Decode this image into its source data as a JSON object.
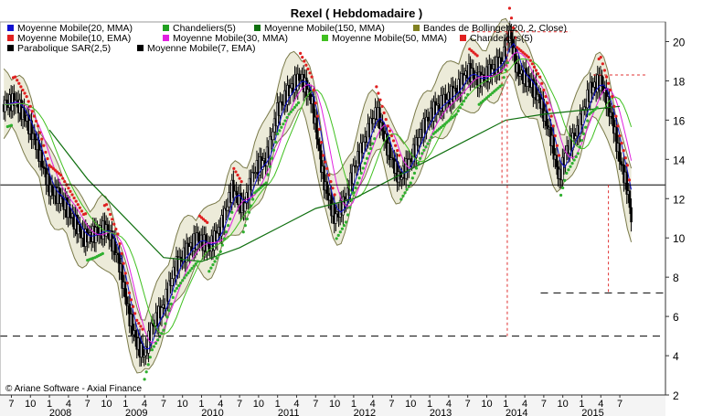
{
  "chart_data": {
    "type": "line",
    "title": "Rexel  ( Hebdomadaire )",
    "copyright": "© Ariane Software - Axial Finance",
    "y_ticks": [
      "2",
      "4",
      "6",
      "8",
      "10",
      "12",
      "14",
      "16",
      "18",
      "20"
    ],
    "ylim": [
      2,
      21
    ],
    "x_month_labels": [
      {
        "t": 2007.5,
        "label": "7"
      },
      {
        "t": 2007.75,
        "label": "10"
      },
      {
        "t": 2008.0,
        "label": "1"
      },
      {
        "t": 2008.25,
        "label": "4"
      },
      {
        "t": 2008.5,
        "label": "7"
      },
      {
        "t": 2008.75,
        "label": "10"
      },
      {
        "t": 2009.0,
        "label": "1"
      },
      {
        "t": 2009.25,
        "label": "4"
      },
      {
        "t": 2009.5,
        "label": "7"
      },
      {
        "t": 2009.75,
        "label": "10"
      },
      {
        "t": 2010.0,
        "label": "1"
      },
      {
        "t": 2010.25,
        "label": "4"
      },
      {
        "t": 2010.5,
        "label": "7"
      },
      {
        "t": 2010.75,
        "label": "10"
      },
      {
        "t": 2011.0,
        "label": "1"
      },
      {
        "t": 2011.25,
        "label": "4"
      },
      {
        "t": 2011.5,
        "label": "7"
      },
      {
        "t": 2011.75,
        "label": "10"
      },
      {
        "t": 2012.0,
        "label": "1"
      },
      {
        "t": 2012.25,
        "label": "4"
      },
      {
        "t": 2012.5,
        "label": "7"
      },
      {
        "t": 2012.75,
        "label": "10"
      },
      {
        "t": 2013.0,
        "label": "1"
      },
      {
        "t": 2013.25,
        "label": "4"
      },
      {
        "t": 2013.5,
        "label": "7"
      },
      {
        "t": 2013.75,
        "label": "10"
      },
      {
        "t": 2014.0,
        "label": "1"
      },
      {
        "t": 2014.25,
        "label": "4"
      },
      {
        "t": 2014.5,
        "label": "7"
      },
      {
        "t": 2014.75,
        "label": "10"
      },
      {
        "t": 2015.0,
        "label": "1"
      },
      {
        "t": 2015.25,
        "label": "4"
      },
      {
        "t": 2015.5,
        "label": "7"
      }
    ],
    "x_year_labels": [
      {
        "t": 2008.0,
        "label": "2008"
      },
      {
        "t": 2009.0,
        "label": "2009"
      },
      {
        "t": 2010.0,
        "label": "2010"
      },
      {
        "t": 2011.0,
        "label": "2011"
      },
      {
        "t": 2012.0,
        "label": "2012"
      },
      {
        "t": 2013.0,
        "label": "2013"
      },
      {
        "t": 2014.0,
        "label": "2014"
      },
      {
        "t": 2015.0,
        "label": "2015"
      }
    ],
    "xlim": [
      2007.35,
      2016.1
    ],
    "legend": [
      {
        "label": "Moyenne Mobile(20, MMA)",
        "color": "#1010d0"
      },
      {
        "label": "Chandeliers(5)",
        "color": "#20a020"
      },
      {
        "label": "Moyenne Mobile(150, MMA)",
        "color": "#107010"
      },
      {
        "label": "Bandes de Bollinger(20, 2, Close)",
        "color": "#808020"
      },
      {
        "label": "Moyenne Mobile(10, EMA)",
        "color": "#e02020"
      },
      {
        "label": "Moyenne Mobile(30, MMA)",
        "color": "#e020e0"
      },
      {
        "label": "Moyenne Mobile(50, MMA)",
        "color": "#40c020"
      },
      {
        "label": "Chandeliers(5)",
        "color": "#e02020"
      },
      {
        "label": "Parabolique SAR(2,5)",
        "color": "#000000"
      },
      {
        "label": "Moyenne Mobile(7, EMA)",
        "color": "#000000"
      }
    ],
    "series": [
      {
        "name": "Rexel",
        "points": [
          [
            2007.4,
            16.8
          ],
          [
            2007.55,
            17.0
          ],
          [
            2007.7,
            16.0
          ],
          [
            2007.85,
            14.5
          ],
          [
            2008.0,
            12.5
          ],
          [
            2008.15,
            12.0
          ],
          [
            2008.3,
            11.0
          ],
          [
            2008.45,
            10.0
          ],
          [
            2008.6,
            10.2
          ],
          [
            2008.75,
            10.5
          ],
          [
            2008.9,
            9.0
          ],
          [
            2009.05,
            6.0
          ],
          [
            2009.15,
            4.6
          ],
          [
            2009.25,
            4.0
          ],
          [
            2009.35,
            5.5
          ],
          [
            2009.5,
            6.5
          ],
          [
            2009.65,
            8.5
          ],
          [
            2009.8,
            9.3
          ],
          [
            2009.95,
            10.0
          ],
          [
            2010.1,
            9.5
          ],
          [
            2010.25,
            10.5
          ],
          [
            2010.4,
            12.5
          ],
          [
            2010.55,
            11.5
          ],
          [
            2010.7,
            13.5
          ],
          [
            2010.85,
            14.0
          ],
          [
            2011.0,
            16.5
          ],
          [
            2011.15,
            17.5
          ],
          [
            2011.3,
            18.2
          ],
          [
            2011.45,
            17.0
          ],
          [
            2011.6,
            13.0
          ],
          [
            2011.75,
            11.0
          ],
          [
            2011.9,
            12.0
          ],
          [
            2012.0,
            13.5
          ],
          [
            2012.15,
            15.0
          ],
          [
            2012.3,
            16.5
          ],
          [
            2012.45,
            14.5
          ],
          [
            2012.6,
            13.0
          ],
          [
            2012.75,
            14.0
          ],
          [
            2012.9,
            15.5
          ],
          [
            2013.05,
            16.5
          ],
          [
            2013.2,
            17.0
          ],
          [
            2013.35,
            17.5
          ],
          [
            2013.5,
            18.5
          ],
          [
            2013.65,
            18.0
          ],
          [
            2013.8,
            18.5
          ],
          [
            2013.95,
            19.0
          ],
          [
            2014.05,
            20.5
          ],
          [
            2014.15,
            18.5
          ],
          [
            2014.3,
            18.0
          ],
          [
            2014.45,
            17.0
          ],
          [
            2014.6,
            15.0
          ],
          [
            2014.7,
            13.0
          ],
          [
            2014.8,
            14.5
          ],
          [
            2014.95,
            15.5
          ],
          [
            2015.1,
            17.5
          ],
          [
            2015.25,
            18.0
          ],
          [
            2015.4,
            16.0
          ],
          [
            2015.5,
            14.0
          ],
          [
            2015.6,
            12.5
          ],
          [
            2015.65,
            11.0
          ]
        ]
      },
      {
        "name": "Moyenne Mobile(150, MMA)",
        "points": [
          [
            2008.0,
            15.5
          ],
          [
            2008.5,
            13.0
          ],
          [
            2009.0,
            11.0
          ],
          [
            2009.5,
            9.0
          ],
          [
            2010.0,
            8.8
          ],
          [
            2010.5,
            9.5
          ],
          [
            2011.0,
            10.5
          ],
          [
            2011.5,
            11.5
          ],
          [
            2012.0,
            12.0
          ],
          [
            2012.5,
            13.0
          ],
          [
            2013.0,
            14.0
          ],
          [
            2013.5,
            15.0
          ],
          [
            2014.0,
            16.0
          ],
          [
            2014.5,
            16.3
          ],
          [
            2015.0,
            16.5
          ],
          [
            2015.5,
            16.7
          ]
        ]
      }
    ],
    "annotations": {
      "horizontal_solid": 12.7,
      "horizontal_dashed_low": 5.0,
      "horizontal_dashed_mid": 7.2,
      "level_20_5": 20.5,
      "level_18_3": 18.3
    }
  }
}
